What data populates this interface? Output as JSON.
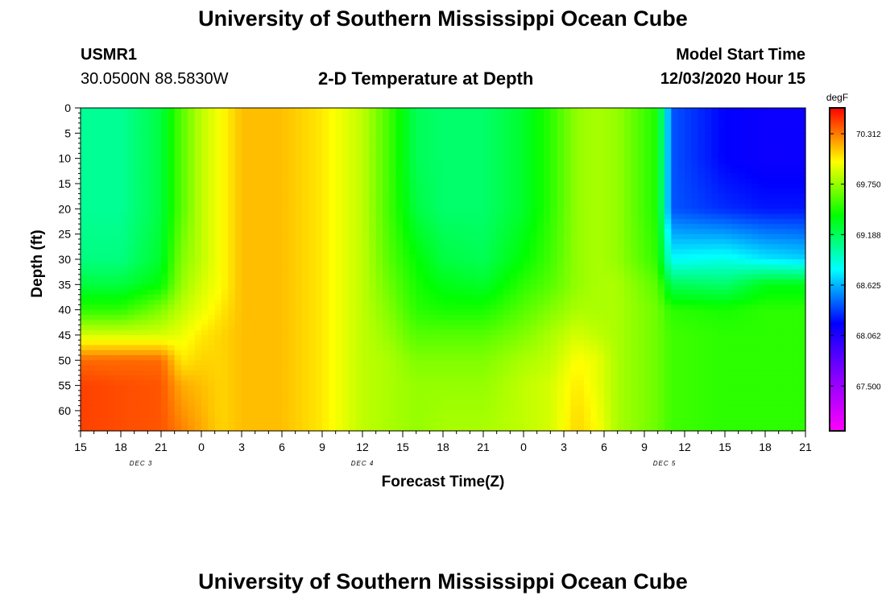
{
  "header": {
    "title": "University of Southern Mississippi Ocean Cube",
    "station_id": "USMR1",
    "coordinates": "30.0500N 88.5830W",
    "plot_title": "2-D Temperature at Depth",
    "model_start_label": "Model Start Time",
    "model_start_value": "12/03/2020 Hour 15"
  },
  "footer": {
    "title": "University of Southern Mississippi Ocean Cube"
  },
  "chart_data": {
    "type": "heatmap",
    "title": "2-D Temperature at Depth",
    "xlabel": "Forecast Time(Z)",
    "ylabel": "Depth (ft)",
    "x_tick_labels": [
      "15",
      "18",
      "21",
      "0",
      "3",
      "6",
      "9",
      "12",
      "15",
      "18",
      "21",
      "0",
      "3",
      "6",
      "9",
      "12",
      "15",
      "18",
      "21"
    ],
    "x_date_labels": [
      {
        "label": "DEC 3",
        "tick_index": 1.5
      },
      {
        "label": "DEC 4",
        "tick_index": 7
      },
      {
        "label": "DEC 5",
        "tick_index": 14.5
      }
    ],
    "y_ticks": [
      0,
      5,
      10,
      15,
      20,
      25,
      30,
      35,
      40,
      45,
      50,
      55,
      60
    ],
    "ylim": [
      0,
      64
    ],
    "forecast_hours_range": [
      0,
      54
    ],
    "colorbar": {
      "unit": "degF",
      "range": [
        67.0,
        70.6
      ],
      "tick_labels": [
        "70.312",
        "69.750",
        "69.188",
        "68.625",
        "68.062",
        "67.500"
      ],
      "colors": [
        "#ff00ff",
        "#8800ff",
        "#0000ff",
        "#00ffff",
        "#00ff00",
        "#ffff00",
        "#ff0000"
      ]
    },
    "depths_ft": [
      0,
      10,
      20,
      30,
      35,
      40,
      45,
      50,
      55,
      64
    ],
    "profiles": [
      {
        "hour": 0,
        "temps": [
          69.05,
          69.05,
          69.05,
          69.1,
          69.25,
          69.5,
          69.9,
          70.35,
          70.45,
          70.45
        ]
      },
      {
        "hour": 3,
        "temps": [
          69.05,
          69.05,
          69.05,
          69.1,
          69.25,
          69.5,
          69.9,
          70.35,
          70.42,
          70.42
        ]
      },
      {
        "hour": 6,
        "temps": [
          69.25,
          69.25,
          69.25,
          69.3,
          69.4,
          69.7,
          69.9,
          70.35,
          70.4,
          70.4
        ]
      },
      {
        "hour": 7.5,
        "temps": [
          69.6,
          69.6,
          69.6,
          69.7,
          69.75,
          69.85,
          69.95,
          70.05,
          70.2,
          70.3
        ]
      },
      {
        "hour": 9,
        "temps": [
          69.85,
          69.85,
          69.85,
          69.85,
          69.9,
          69.95,
          70.05,
          70.1,
          70.15,
          70.2
        ]
      },
      {
        "hour": 10.5,
        "temps": [
          70.0,
          70.0,
          70.0,
          70.0,
          70.0,
          70.05,
          70.1,
          70.1,
          70.1,
          70.1
        ]
      },
      {
        "hour": 12,
        "temps": [
          70.15,
          70.15,
          70.15,
          70.15,
          70.15,
          70.15,
          70.15,
          70.15,
          70.15,
          70.15
        ]
      },
      {
        "hour": 15,
        "temps": [
          70.15,
          70.15,
          70.15,
          70.15,
          70.15,
          70.15,
          70.15,
          70.15,
          70.15,
          70.15
        ]
      },
      {
        "hour": 18,
        "temps": [
          70.05,
          70.05,
          70.05,
          70.05,
          70.05,
          70.05,
          70.05,
          70.05,
          70.05,
          70.05
        ]
      },
      {
        "hour": 21,
        "temps": [
          69.85,
          69.85,
          69.85,
          69.85,
          69.85,
          69.85,
          69.85,
          69.85,
          69.85,
          69.85
        ]
      },
      {
        "hour": 23,
        "temps": [
          69.55,
          69.55,
          69.55,
          69.6,
          69.65,
          69.7,
          69.75,
          69.8,
          69.8,
          69.8
        ]
      },
      {
        "hour": 25,
        "temps": [
          69.2,
          69.2,
          69.25,
          69.4,
          69.45,
          69.5,
          69.6,
          69.7,
          69.75,
          69.75
        ]
      },
      {
        "hour": 27,
        "temps": [
          69.15,
          69.15,
          69.15,
          69.25,
          69.35,
          69.45,
          69.6,
          69.7,
          69.75,
          69.8
        ]
      },
      {
        "hour": 30,
        "temps": [
          69.15,
          69.15,
          69.15,
          69.2,
          69.3,
          69.45,
          69.6,
          69.7,
          69.75,
          69.8
        ]
      },
      {
        "hour": 33,
        "temps": [
          69.3,
          69.3,
          69.3,
          69.4,
          69.5,
          69.6,
          69.7,
          69.8,
          69.85,
          69.85
        ]
      },
      {
        "hour": 35,
        "temps": [
          69.5,
          69.5,
          69.5,
          69.55,
          69.6,
          69.7,
          69.8,
          69.85,
          69.9,
          69.9
        ]
      },
      {
        "hour": 37,
        "temps": [
          69.75,
          69.75,
          69.75,
          69.75,
          69.75,
          69.8,
          69.9,
          70.0,
          70.05,
          70.1
        ]
      },
      {
        "hour": 38.5,
        "temps": [
          69.8,
          69.8,
          69.8,
          69.8,
          69.8,
          69.8,
          69.85,
          69.95,
          69.95,
          70.0
        ]
      },
      {
        "hour": 40,
        "temps": [
          69.75,
          69.75,
          69.75,
          69.75,
          69.8,
          69.8,
          69.8,
          69.8,
          69.8,
          69.8
        ]
      },
      {
        "hour": 43,
        "temps": [
          69.45,
          69.45,
          69.45,
          69.5,
          69.6,
          69.65,
          69.65,
          69.65,
          69.65,
          69.65
        ]
      },
      {
        "hour": 44,
        "temps": [
          68.4,
          68.4,
          68.4,
          68.8,
          69.2,
          69.5,
          69.55,
          69.55,
          69.55,
          69.55
        ]
      },
      {
        "hour": 48,
        "temps": [
          68.2,
          68.2,
          68.3,
          68.85,
          69.15,
          69.45,
          69.5,
          69.5,
          69.5,
          69.5
        ]
      },
      {
        "hour": 51,
        "temps": [
          68.15,
          68.15,
          68.25,
          68.75,
          69.35,
          69.5,
          69.5,
          69.5,
          69.5,
          69.5
        ]
      },
      {
        "hour": 54,
        "temps": [
          68.15,
          68.15,
          68.25,
          68.7,
          69.35,
          69.5,
          69.5,
          69.5,
          69.5,
          69.5
        ]
      }
    ]
  }
}
